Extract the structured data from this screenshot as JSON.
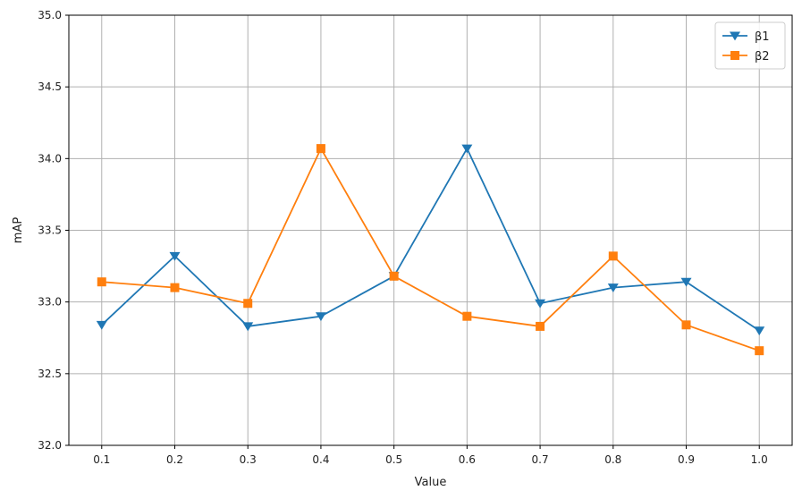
{
  "chart_data": {
    "type": "line",
    "title": "",
    "xlabel": "Value",
    "ylabel": "mAP",
    "x": [
      0.1,
      0.2,
      0.3,
      0.4,
      0.5,
      0.6,
      0.7,
      0.8,
      0.9,
      1.0
    ],
    "x_tick_labels": [
      "0.1",
      "0.2",
      "0.3",
      "0.4",
      "0.5",
      "0.6",
      "0.7",
      "0.8",
      "0.9",
      "1.0"
    ],
    "ylim": [
      32.0,
      35.0
    ],
    "y_ticks": [
      32.0,
      32.5,
      33.0,
      33.5,
      34.0,
      34.5,
      35.0
    ],
    "y_tick_labels": [
      "32.0",
      "32.5",
      "33.0",
      "33.5",
      "34.0",
      "34.5",
      "35.0"
    ],
    "grid": true,
    "legend_position": "top-right",
    "series": [
      {
        "name": "β1",
        "color": "#1f77b4",
        "marker": "triangle-down",
        "values": [
          32.84,
          33.32,
          32.83,
          32.9,
          33.18,
          34.07,
          32.99,
          33.1,
          33.14,
          32.8
        ]
      },
      {
        "name": "β2",
        "color": "#ff7f0e",
        "marker": "square",
        "values": [
          33.14,
          33.1,
          32.99,
          34.07,
          33.18,
          32.9,
          32.83,
          33.32,
          32.84,
          32.66
        ]
      }
    ]
  }
}
